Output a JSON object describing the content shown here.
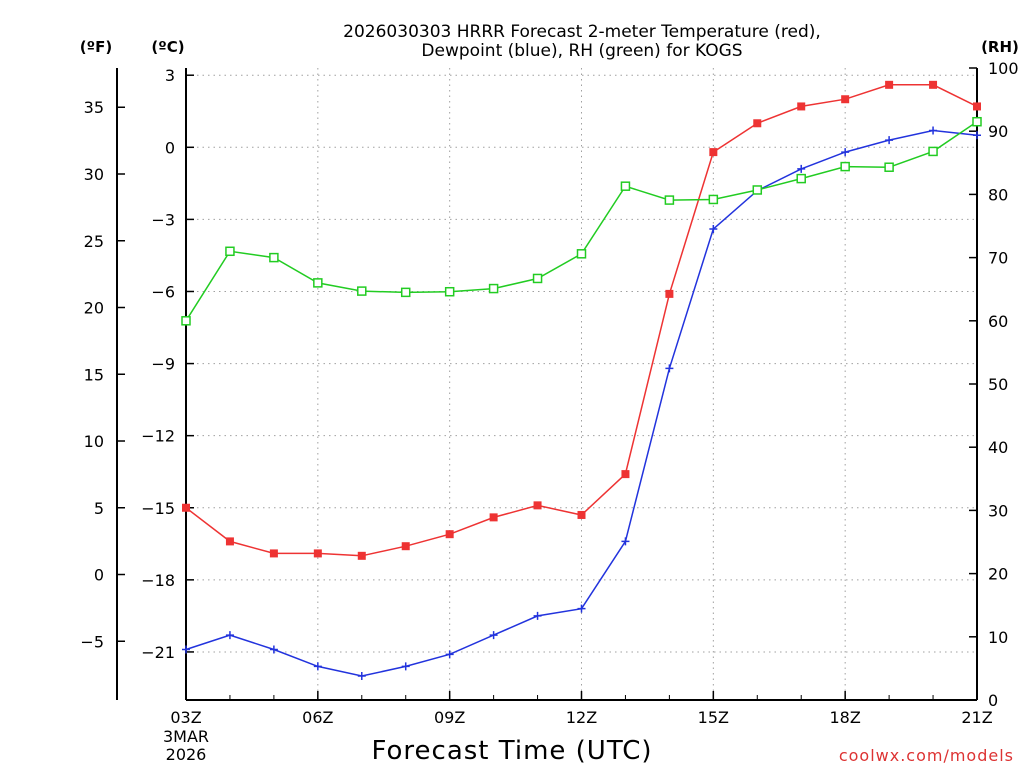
{
  "chart_data": {
    "type": "line",
    "title_line1": "2026030303 HRRR Forecast 2-meter Temperature (red),",
    "title_line2": "Dewpoint (blue), RH (green) for KOGS",
    "unit_f": "(ºF)",
    "unit_c": "(ºC)",
    "unit_rh": "(RH)",
    "xlabel": "Forecast Time (UTC)",
    "credit": "coolwx.com/models",
    "date_line1": "3MAR",
    "date_line2": "2026",
    "x_hours": [
      3,
      4,
      5,
      6,
      7,
      8,
      9,
      10,
      11,
      12,
      13,
      14,
      15,
      16,
      17,
      18,
      19,
      20,
      21
    ],
    "xlim": [
      3,
      21
    ],
    "x_ticks": [
      {
        "hour": 3,
        "label": "03Z"
      },
      {
        "hour": 6,
        "label": "06Z"
      },
      {
        "hour": 9,
        "label": "09Z"
      },
      {
        "hour": 12,
        "label": "12Z"
      },
      {
        "hour": 15,
        "label": "15Z"
      },
      {
        "hour": 18,
        "label": "18Z"
      },
      {
        "hour": 21,
        "label": "21Z"
      }
    ],
    "ylim_c": [
      -23,
      3.3
    ],
    "yticks_c": [
      3,
      0,
      -3,
      -6,
      -9,
      -12,
      -15,
      -18,
      -21
    ],
    "ytick_labels_c": [
      "3",
      "0",
      "−3",
      "−6",
      "−9",
      "−12",
      "−15",
      "−18",
      "−21"
    ],
    "yticks_f": [
      35,
      30,
      25,
      20,
      15,
      10,
      5,
      0,
      -5
    ],
    "ytick_labels_f": [
      "35",
      "30",
      "25",
      "20",
      "15",
      "10",
      "5",
      "0",
      "−5"
    ],
    "ylim_rh": [
      0,
      100
    ],
    "yticks_rh": [
      0,
      10,
      20,
      30,
      40,
      50,
      60,
      70,
      80,
      90,
      100
    ],
    "ytick_labels_rh": [
      "0",
      "10",
      "20",
      "30",
      "40",
      "50",
      "60",
      "70",
      "80",
      "90",
      "100"
    ],
    "series": [
      {
        "name": "Temperature",
        "axis": "c",
        "color": "#ee3333",
        "marker": "filled-square",
        "values": [
          -15.0,
          -16.4,
          -16.9,
          -16.9,
          -17.0,
          -16.6,
          -16.1,
          -15.4,
          -14.9,
          -15.3,
          -13.6,
          -6.1,
          -0.2,
          1.0,
          1.7,
          2.0,
          2.6,
          2.6,
          1.7
        ]
      },
      {
        "name": "Dewpoint",
        "axis": "c",
        "color": "#2233dd",
        "marker": "plus",
        "values": [
          -20.9,
          -20.3,
          -20.9,
          -21.6,
          -22.0,
          -21.6,
          -21.1,
          -20.3,
          -19.5,
          -19.2,
          -16.4,
          -9.2,
          -3.4,
          -1.8,
          -0.9,
          -0.2,
          0.3,
          0.7,
          0.5
        ]
      },
      {
        "name": "RH",
        "axis": "rh",
        "color": "#22cc22",
        "marker": "open-square",
        "values": [
          60,
          71,
          70,
          66,
          64.7,
          64.5,
          64.6,
          65.1,
          66.7,
          70.6,
          81.3,
          79.1,
          79.2,
          80.7,
          82.5,
          84.4,
          84.3,
          86.8,
          91.5
        ]
      }
    ]
  }
}
